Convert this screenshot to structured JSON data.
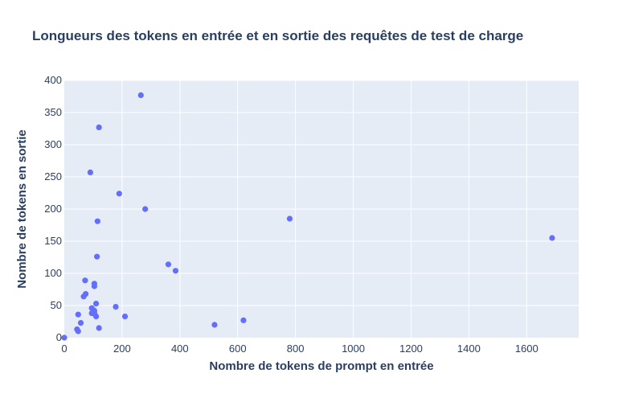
{
  "chart_data": {
    "type": "scatter",
    "title": "Longueurs des tokens en entrée et en sortie des requêtes de test de charge",
    "xlabel": "Nombre de tokens de prompt en entrée",
    "ylabel": "Nombre de tokens en sortie",
    "xlim": [
      0,
      1780
    ],
    "ylim": [
      0,
      400
    ],
    "x_ticks": [
      0,
      200,
      400,
      600,
      800,
      1000,
      1200,
      1400,
      1600
    ],
    "y_ticks": [
      0,
      50,
      100,
      150,
      200,
      250,
      300,
      350,
      400
    ],
    "grid": true,
    "legend": "none",
    "colors": {
      "marker": "#636efa",
      "plot_bg": "#e5ecf6",
      "grid": "#ffffff",
      "text": "#2a3f5f"
    },
    "points": [
      {
        "x": 265,
        "y": 377
      },
      {
        "x": 120,
        "y": 327
      },
      {
        "x": 90,
        "y": 257
      },
      {
        "x": 190,
        "y": 224
      },
      {
        "x": 280,
        "y": 200
      },
      {
        "x": 115,
        "y": 181
      },
      {
        "x": 780,
        "y": 185
      },
      {
        "x": 1688,
        "y": 155
      },
      {
        "x": 113,
        "y": 126
      },
      {
        "x": 360,
        "y": 114
      },
      {
        "x": 385,
        "y": 104
      },
      {
        "x": 72,
        "y": 89
      },
      {
        "x": 104,
        "y": 84
      },
      {
        "x": 104,
        "y": 80
      },
      {
        "x": 74,
        "y": 68
      },
      {
        "x": 67,
        "y": 64
      },
      {
        "x": 110,
        "y": 53
      },
      {
        "x": 178,
        "y": 48
      },
      {
        "x": 95,
        "y": 46
      },
      {
        "x": 104,
        "y": 42
      },
      {
        "x": 95,
        "y": 38
      },
      {
        "x": 105,
        "y": 37
      },
      {
        "x": 48,
        "y": 36
      },
      {
        "x": 110,
        "y": 33
      },
      {
        "x": 210,
        "y": 33
      },
      {
        "x": 620,
        "y": 27
      },
      {
        "x": 57,
        "y": 23
      },
      {
        "x": 520,
        "y": 20
      },
      {
        "x": 120,
        "y": 15
      },
      {
        "x": 44,
        "y": 13
      },
      {
        "x": 48,
        "y": 10
      },
      {
        "x": 0,
        "y": 0
      }
    ]
  }
}
